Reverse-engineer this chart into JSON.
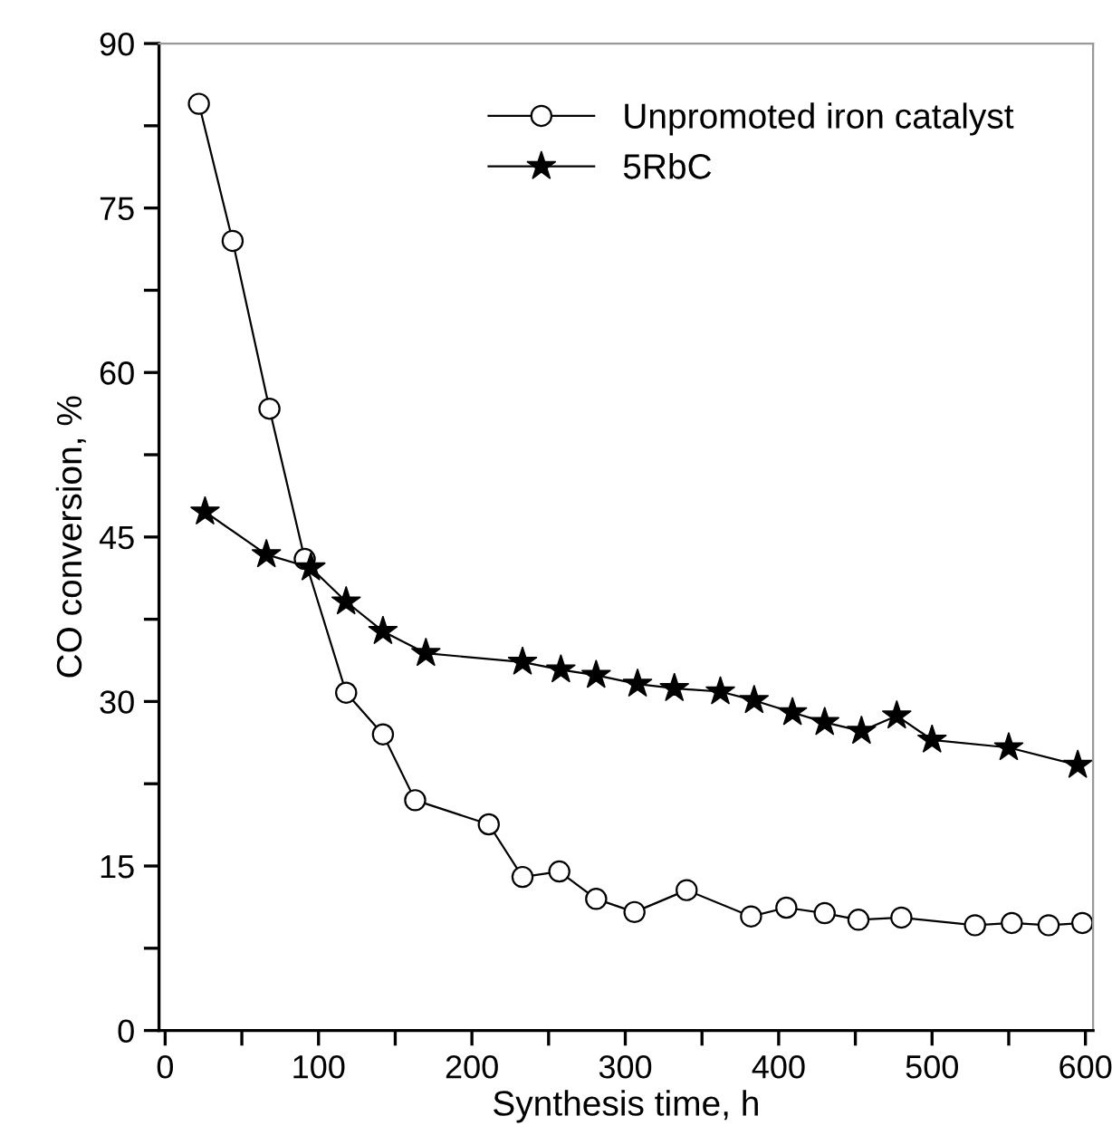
{
  "chart_data": {
    "type": "line",
    "xlabel": "Synthesis time, h",
    "ylabel": "CO conversion, %",
    "xlim": [
      -4,
      605
    ],
    "ylim": [
      0,
      90
    ],
    "xticks": [
      0,
      {
        "value": 50,
        "label": null
      },
      100,
      {
        "value": 150,
        "label": null
      },
      200,
      {
        "value": 250,
        "label": null
      },
      300,
      {
        "value": 350,
        "label": null
      },
      400,
      {
        "value": 450,
        "label": null
      },
      500,
      {
        "value": 550,
        "label": null
      },
      600
    ],
    "yticks": [
      0,
      {
        "value": 7.5,
        "label": null
      },
      15,
      {
        "value": 22.5,
        "label": null
      },
      30,
      {
        "value": 37.5,
        "label": null
      },
      45,
      {
        "value": 52.5,
        "label": null
      },
      60,
      {
        "value": 67.5,
        "label": null
      },
      75,
      {
        "value": 82.5,
        "label": null
      },
      90
    ],
    "grid": false,
    "legend": "top",
    "line_style": "solid",
    "series": [
      {
        "name": "Unpromoted iron catalyst",
        "color": "#000000",
        "marker": "circle",
        "x": [
          22,
          44,
          68,
          91,
          118,
          142,
          163,
          211,
          233,
          257,
          281,
          306,
          340,
          382,
          405,
          430,
          452,
          480,
          528,
          552,
          576,
          598
        ],
        "values": [
          84.5,
          72,
          56.7,
          43,
          30.8,
          27,
          21,
          18.8,
          14,
          14.5,
          12,
          10.8,
          12.8,
          10.4,
          11.2,
          10.7,
          10.1,
          10.3,
          9.6,
          9.8,
          9.6,
          9.8
        ]
      },
      {
        "name": "5RbC",
        "color": "#000000",
        "marker": "star",
        "x": [
          26,
          66,
          95,
          118,
          142,
          170,
          233,
          258,
          281,
          308,
          332,
          362,
          384,
          409,
          430,
          454,
          477,
          500,
          550,
          595
        ],
        "values": [
          47.3,
          43.4,
          42.2,
          39.1,
          36.4,
          34.4,
          33.6,
          32.9,
          32.4,
          31.6,
          31.2,
          30.9,
          30.1,
          29,
          28.1,
          27.3,
          28.7,
          26.5,
          25.8,
          24.2
        ]
      }
    ]
  }
}
